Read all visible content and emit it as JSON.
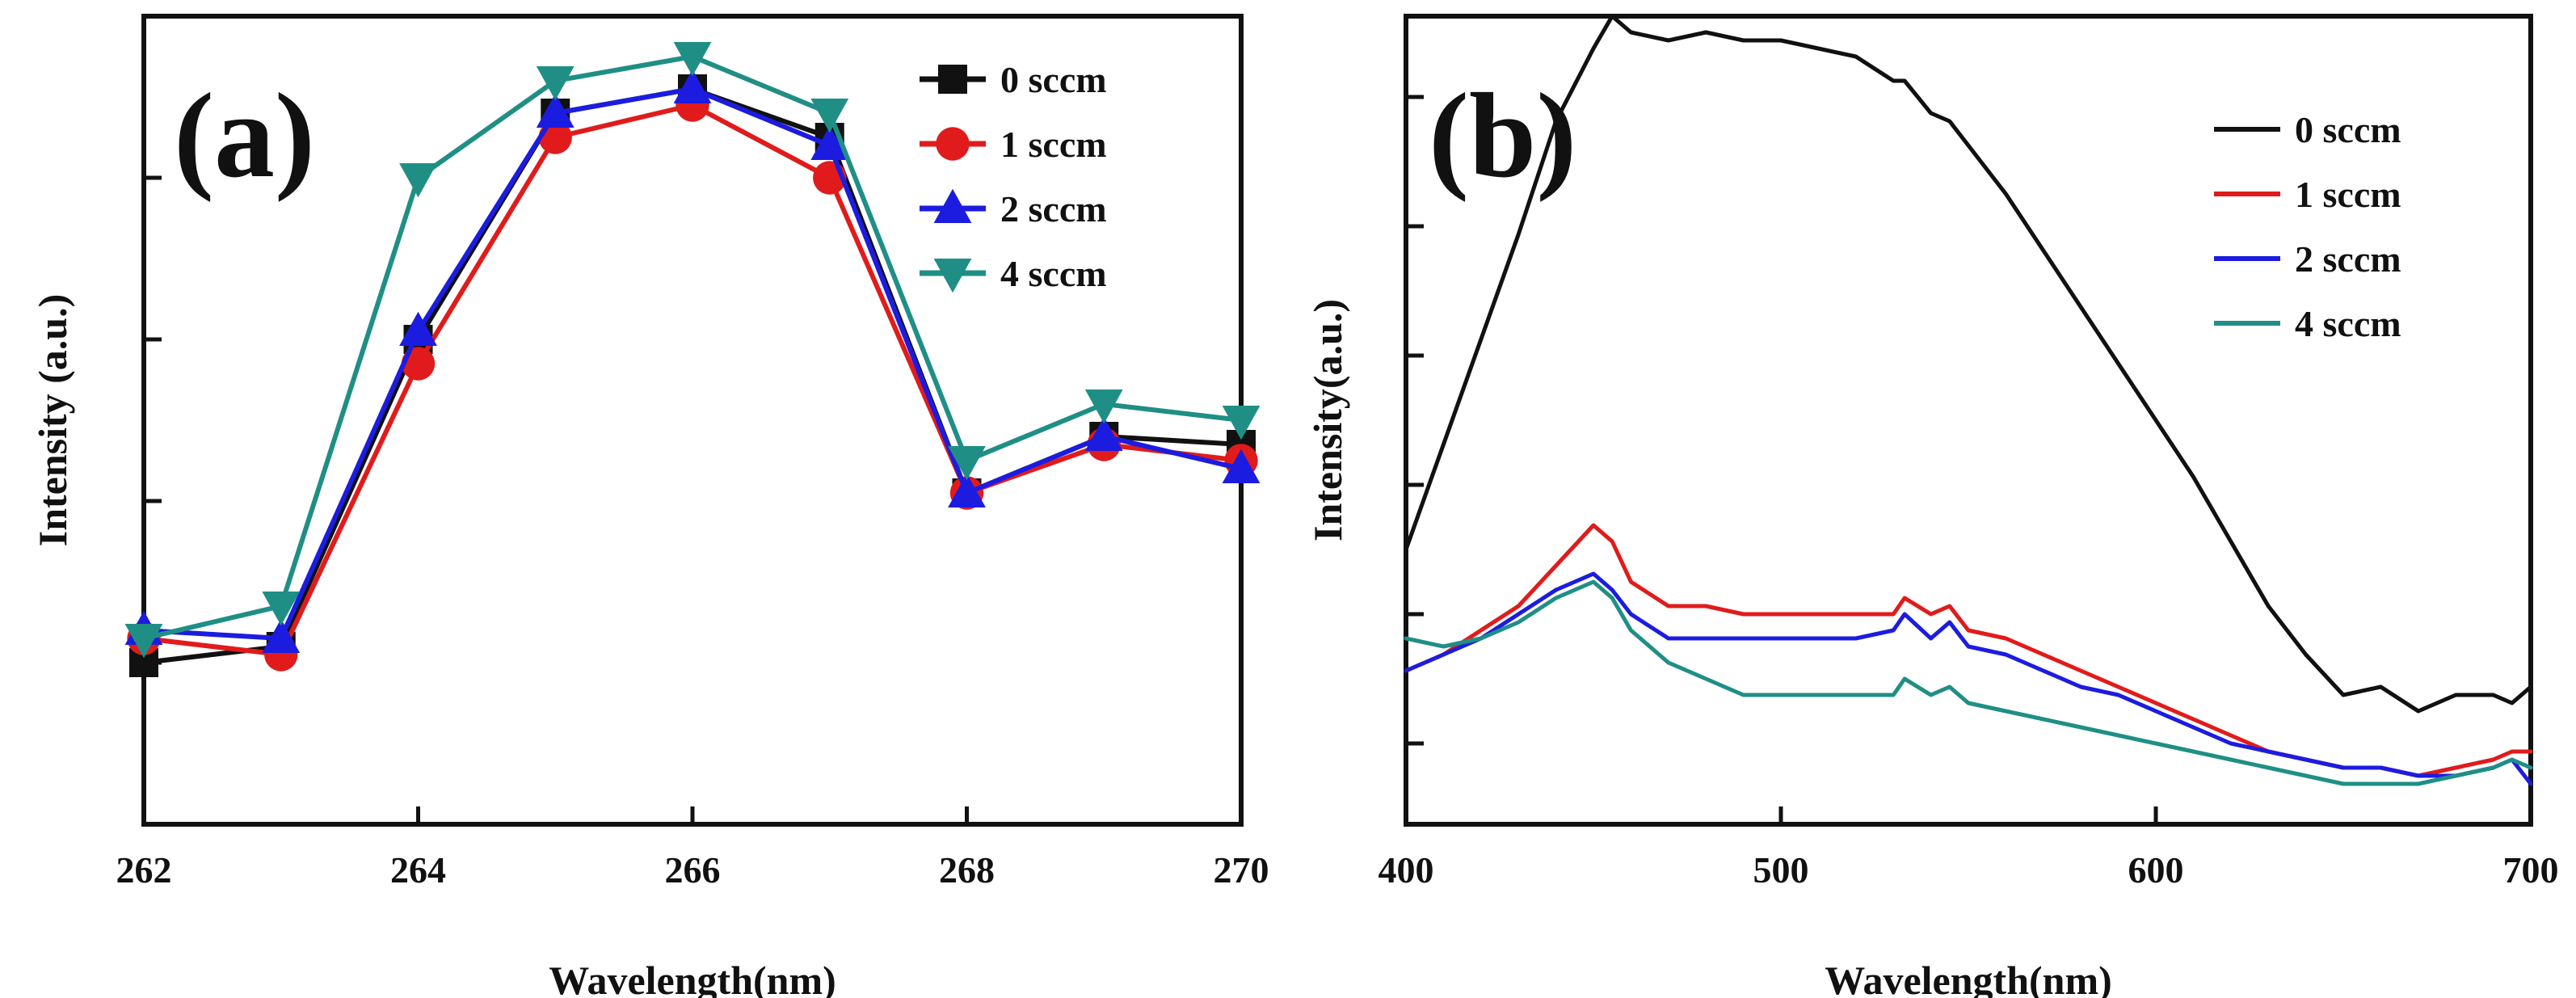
{
  "colors": {
    "s0": "#111111",
    "s1": "#e11b1b",
    "s2": "#1c1ce0",
    "s4": "#1f8f86"
  },
  "chart_data": [
    {
      "type": "line",
      "panel": "(a)",
      "xlabel": "Wavelength(nm)",
      "ylabel": "Intensity (a.u.)",
      "xlim": [
        262,
        270
      ],
      "ylim": [
        0,
        100
      ],
      "x_ticks": [
        262,
        264,
        266,
        268,
        270
      ],
      "x_tick_labels": [
        "262",
        "264",
        "266",
        "268",
        "270"
      ],
      "y_ticks": [
        20,
        40,
        60,
        80
      ],
      "legend_position": "top-right",
      "x": [
        262,
        263,
        264,
        265,
        266,
        267,
        268,
        269,
        270
      ],
      "series": [
        {
          "name": "0 sccm",
          "marker": "square",
          "values": [
            20,
            22,
            60,
            88,
            91,
            85,
            41,
            48,
            47
          ]
        },
        {
          "name": "1 sccm",
          "marker": "circle",
          "values": [
            23,
            21,
            57,
            85,
            89,
            80,
            41,
            47,
            45
          ]
        },
        {
          "name": "2 sccm",
          "marker": "triangle-up",
          "values": [
            24,
            23,
            61,
            88,
            91,
            84,
            41,
            48,
            44
          ]
        },
        {
          "name": "4 sccm",
          "marker": "triangle-down",
          "values": [
            23,
            27,
            80,
            92,
            95,
            88,
            45,
            52,
            50
          ]
        }
      ]
    },
    {
      "type": "line",
      "panel": "(b)",
      "xlabel": "Wavelength(nm)",
      "ylabel": "Intensity(a.u.)",
      "xlim": [
        400,
        700
      ],
      "ylim": [
        0,
        100
      ],
      "x_ticks": [
        400,
        500,
        600,
        700
      ],
      "x_tick_labels": [
        "400",
        "500",
        "600",
        "700"
      ],
      "y_ticks": [
        10,
        26,
        42,
        58,
        74,
        90
      ],
      "legend_position": "top-right",
      "x": [
        400,
        410,
        420,
        430,
        440,
        450,
        455,
        460,
        470,
        480,
        490,
        500,
        510,
        520,
        530,
        533,
        540,
        545,
        550,
        560,
        570,
        580,
        590,
        600,
        610,
        620,
        630,
        640,
        650,
        660,
        670,
        680,
        690,
        695,
        700
      ],
      "series": [
        {
          "name": "0 sccm",
          "values": [
            34,
            47,
            60,
            73,
            87,
            96,
            100,
            98,
            97,
            98,
            97,
            97,
            96,
            95,
            92,
            92,
            88,
            87,
            84,
            78,
            71,
            64,
            57,
            50,
            43,
            35,
            27,
            21,
            16,
            17,
            14,
            16,
            16,
            15,
            17
          ]
        },
        {
          "name": "1 sccm",
          "values": [
            19,
            21,
            24,
            27,
            32,
            37,
            35,
            30,
            27,
            27,
            26,
            26,
            26,
            26,
            26,
            28,
            26,
            27,
            24,
            23,
            21,
            19,
            17,
            15,
            13,
            11,
            9,
            8,
            7,
            7,
            6,
            7,
            8,
            9,
            9
          ]
        },
        {
          "name": "2 sccm",
          "values": [
            19,
            21,
            23,
            26,
            29,
            31,
            29,
            26,
            23,
            23,
            23,
            23,
            23,
            23,
            24,
            26,
            23,
            25,
            22,
            21,
            19,
            17,
            16,
            14,
            12,
            10,
            9,
            8,
            7,
            7,
            6,
            6,
            7,
            8,
            5
          ]
        },
        {
          "name": "4 sccm",
          "values": [
            23,
            22,
            23,
            25,
            28,
            30,
            28,
            24,
            20,
            18,
            16,
            16,
            16,
            16,
            16,
            18,
            16,
            17,
            15,
            14,
            13,
            12,
            11,
            10,
            9,
            8,
            7,
            6,
            5,
            5,
            5,
            6,
            7,
            8,
            7
          ]
        }
      ]
    }
  ]
}
